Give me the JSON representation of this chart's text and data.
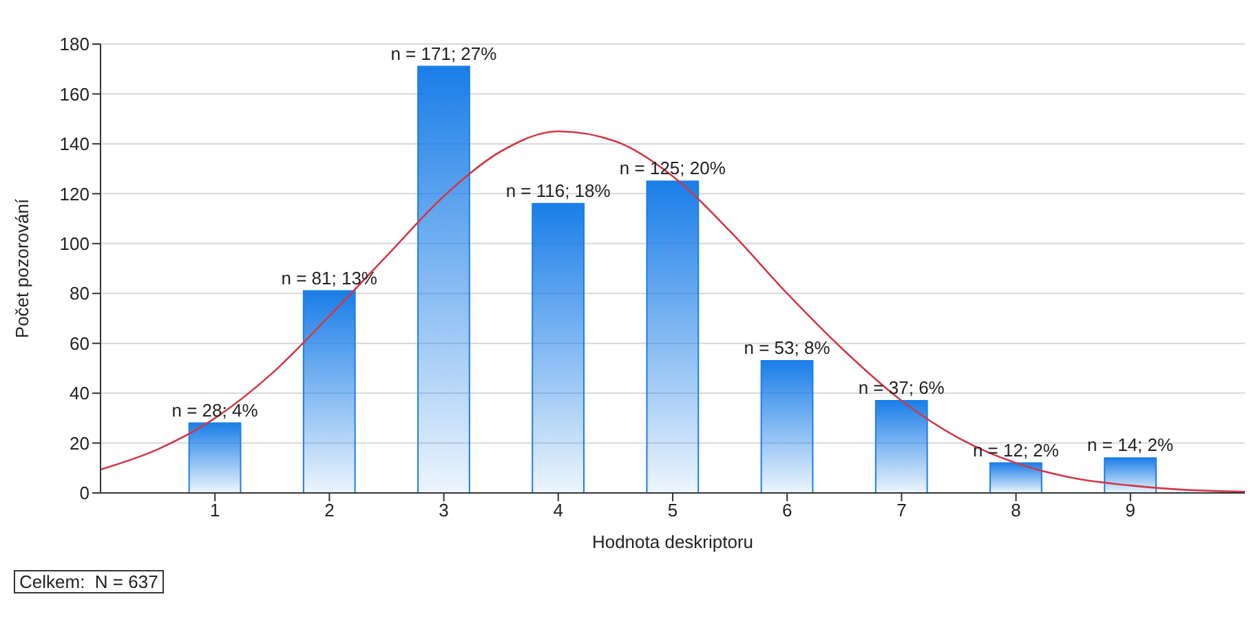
{
  "chart_data": {
    "type": "bar",
    "xlabel": "Hodnota deskriptoru",
    "ylabel": "Počet pozorování",
    "x": [
      1,
      2,
      3,
      4,
      5,
      6,
      7,
      8,
      9
    ],
    "xlim": [
      0,
      10
    ],
    "xticks": [
      1,
      2,
      3,
      4,
      5,
      6,
      7,
      8,
      9
    ],
    "ylim": [
      0,
      180
    ],
    "yticks": [
      0,
      20,
      40,
      60,
      80,
      100,
      120,
      140,
      160,
      180
    ],
    "grid": "y",
    "legend": false,
    "series": [
      {
        "color": "#1a7ee8",
        "values": [
          28,
          81,
          171,
          116,
          125,
          53,
          37,
          12,
          14
        ],
        "value_labels": [
          "n = 28; 4%",
          "n = 81; 13%",
          "n = 171; 27%",
          "n = 116; 18%",
          "n = 125; 20%",
          "n = 53; 8%",
          "n = 37; 6%",
          "n = 12; 2%",
          "n = 14; 2%"
        ]
      },
      {
        "type": "line",
        "color": "#d03848",
        "marker": "none",
        "x": [
          0,
          0.5,
          1,
          1.5,
          2,
          2.5,
          3,
          3.5,
          4,
          4.5,
          5,
          5.5,
          6,
          6.5,
          7,
          7.5,
          8,
          8.5,
          9,
          9.5,
          10
        ],
        "values": [
          9.4,
          17.5,
          30,
          48,
          71,
          95,
          119,
          137,
          145,
          141,
          127,
          105,
          80,
          57,
          37,
          22,
          12,
          6,
          3,
          1.2,
          0.5
        ]
      }
    ],
    "annotations": [
      "Celkem:  N = 637"
    ]
  }
}
